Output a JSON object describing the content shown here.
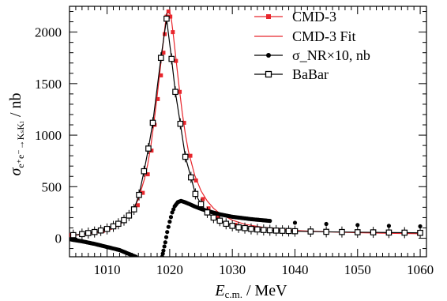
{
  "chart_data": {
    "type": "line",
    "xlabel": {
      "main": "E",
      "sub": "c.m.",
      "unit": " / MeV"
    },
    "ylabel": {
      "main": "σ",
      "sub": "e⁺e⁻→KₛKₗ",
      "unit": " / nb"
    },
    "xlim": [
      1004,
      1061
    ],
    "ylim": [
      -180,
      2250
    ],
    "x_ticks": [
      1010,
      1020,
      1030,
      1040,
      1050,
      1060
    ],
    "y_ticks": [
      0,
      500,
      1000,
      1500,
      2000
    ],
    "grid": false,
    "legend_position": "top-right",
    "series": [
      {
        "name": "CMD-3",
        "marker": "filled-square",
        "color": "#e8262c",
        "x": [
          1004.1,
          1009.3,
          1014.9,
          1015.7,
          1016.5,
          1017.1,
          1017.6,
          1018.1,
          1018.6,
          1019.0,
          1019.2,
          1019.5,
          1019.8,
          1020.1,
          1020.5,
          1021.0,
          1021.6,
          1022.3,
          1023.3,
          1024.2,
          1025.3,
          1026.2,
          1027.7,
          1030.5,
          1033.6,
          1040.0,
          1050.0,
          1059.8
        ],
        "y": [
          30,
          70,
          320,
          440,
          620,
          850,
          1100,
          1350,
          1580,
          1800,
          1980,
          2150,
          2200,
          2150,
          2000,
          1720,
          1420,
          1120,
          800,
          560,
          380,
          290,
          200,
          130,
          100,
          70,
          55,
          45
        ]
      },
      {
        "name": "CMD-3 Fit",
        "marker": "none",
        "color": "#e8262c",
        "x": [
          1004,
          1006,
          1008,
          1010,
          1011,
          1012,
          1013,
          1014,
          1015,
          1016,
          1016.5,
          1017,
          1017.5,
          1018,
          1018.5,
          1019,
          1019.3,
          1019.5,
          1019.7,
          1020,
          1020.3,
          1020.6,
          1021,
          1021.5,
          1022,
          1022.5,
          1023,
          1024,
          1025,
          1026,
          1027,
          1028,
          1030,
          1032,
          1035,
          1040,
          1045,
          1050,
          1055,
          1060
        ],
        "y": [
          25,
          35,
          48,
          70,
          95,
          130,
          185,
          260,
          380,
          580,
          720,
          900,
          1130,
          1380,
          1650,
          1920,
          2080,
          2160,
          2210,
          2200,
          2110,
          1960,
          1740,
          1470,
          1220,
          1010,
          840,
          610,
          460,
          360,
          290,
          240,
          175,
          135,
          105,
          75,
          62,
          54,
          48,
          44
        ]
      },
      {
        "name": "σ_NR×10, nb",
        "marker": "filled-circle",
        "color": "#000000",
        "x": [
          1004,
          1006,
          1008,
          1010,
          1012,
          1013,
          1014,
          1014.6,
          1018.8,
          1019.0,
          1019.3,
          1019.6,
          1020.0,
          1020.4,
          1020.8,
          1021.3,
          1021.8,
          1022.4,
          1023.2,
          1024.0,
          1025.0,
          1026.0,
          1028.0,
          1030.0,
          1033.0,
          1036.0,
          1040.0,
          1045.0,
          1050.0,
          1055.0,
          1060.0
        ],
        "y": [
          -10,
          -30,
          -55,
          -85,
          -115,
          -140,
          -165,
          -180,
          -180,
          -120,
          -40,
          60,
          160,
          250,
          310,
          350,
          362,
          350,
          330,
          308,
          285,
          265,
          232,
          208,
          185,
          168,
          150,
          138,
          128,
          120,
          115
        ]
      },
      {
        "name": "BaBar",
        "marker": "open-square",
        "color": "#000000",
        "x": [
          1004.6,
          1006.0,
          1007.0,
          1008.0,
          1009.0,
          1010.0,
          1011.0,
          1011.8,
          1012.7,
          1013.5,
          1014.3,
          1015.1,
          1015.9,
          1016.6,
          1017.3,
          1018.6,
          1019.5,
          1020.3,
          1020.9,
          1021.7,
          1022.5,
          1023.4,
          1024.1,
          1025.0,
          1026.0,
          1027.0,
          1028.0,
          1029.0,
          1030.0,
          1031.0,
          1032.0,
          1033.0,
          1034.0,
          1035.0,
          1036.0,
          1037.0,
          1038.0,
          1039.0,
          1040.0,
          1042.5,
          1045.0,
          1047.5,
          1050.0,
          1052.5,
          1055.0,
          1057.5,
          1060.0
        ],
        "y": [
          30,
          40,
          50,
          60,
          75,
          90,
          115,
          140,
          175,
          220,
          280,
          420,
          650,
          870,
          1120,
          1750,
          2130,
          1740,
          1420,
          1110,
          790,
          590,
          430,
          330,
          250,
          200,
          170,
          140,
          120,
          105,
          98,
          90,
          85,
          80,
          77,
          74,
          72,
          70,
          68,
          65,
          62,
          60,
          58,
          57,
          55,
          54,
          52
        ]
      }
    ]
  }
}
